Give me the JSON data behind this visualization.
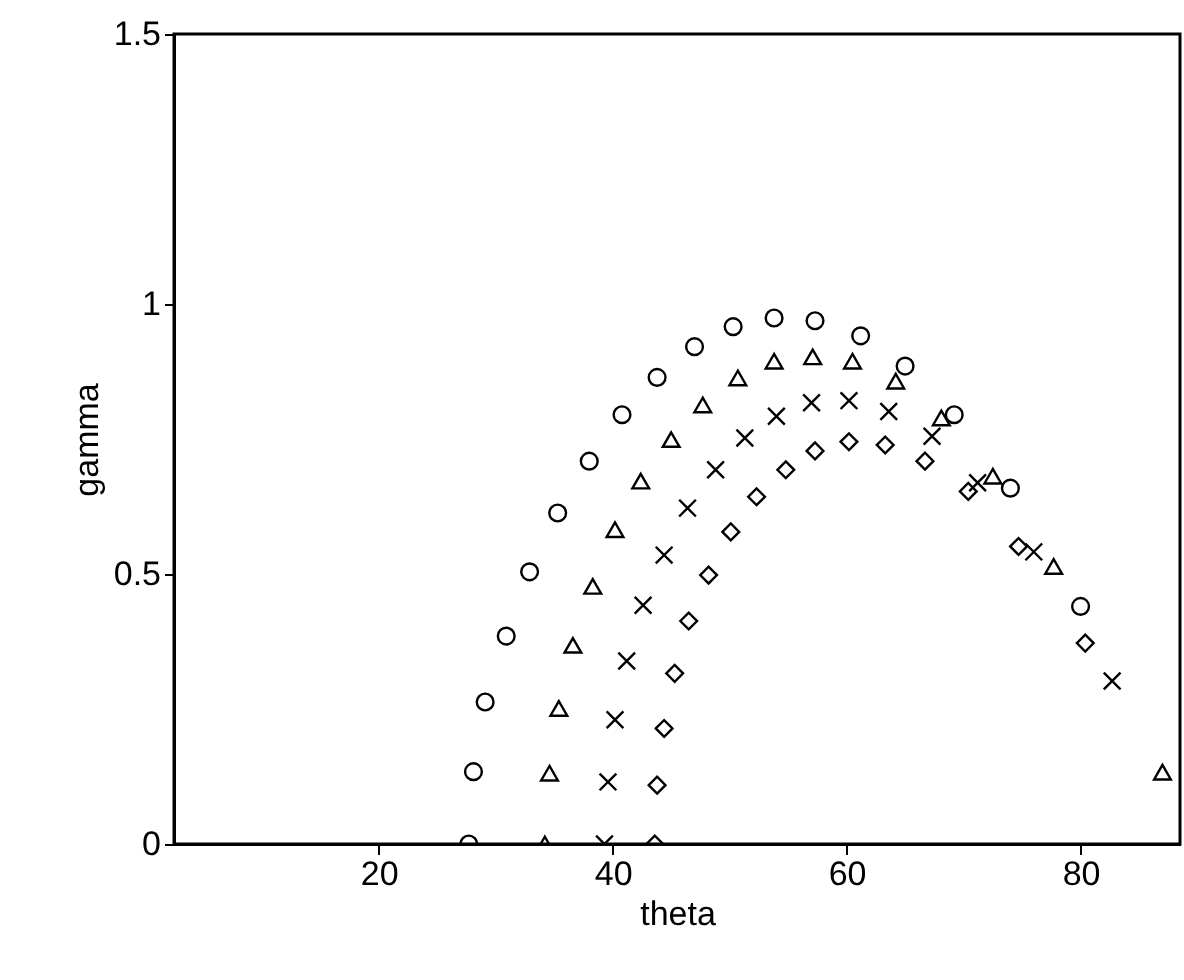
{
  "chart_data": {
    "type": "scatter",
    "xlabel": "theta",
    "ylabel": "gamma",
    "xlim": [
      2.5,
      88.5
    ],
    "ylim": [
      0,
      1.5
    ],
    "xticks": [
      20,
      40,
      60,
      80
    ],
    "yticks": [
      0,
      0.5,
      1,
      1.5
    ],
    "grid": false,
    "series": [
      {
        "color": "#000000",
        "marker": "circle",
        "x": [
          27.7,
          28.1,
          29.1,
          30.9,
          32.9,
          35.3,
          38.0,
          40.8,
          43.8,
          47.0,
          50.3,
          53.8,
          57.3,
          61.2,
          65.0,
          69.2,
          74.0,
          80.0
        ],
        "values": [
          0,
          0.134,
          0.263,
          0.385,
          0.504,
          0.613,
          0.709,
          0.795,
          0.864,
          0.921,
          0.958,
          0.974,
          0.969,
          0.941,
          0.885,
          0.795,
          0.659,
          0.44
        ]
      },
      {
        "color": "#000000",
        "marker": "triangle",
        "x": [
          34.2,
          34.6,
          35.4,
          36.6,
          38.3,
          40.2,
          42.4,
          45.0,
          47.7,
          50.7,
          53.8,
          57.1,
          60.5,
          64.2,
          68.1,
          72.5,
          77.7,
          87.0
        ],
        "values": [
          0,
          0.131,
          0.251,
          0.368,
          0.477,
          0.582,
          0.672,
          0.749,
          0.813,
          0.863,
          0.894,
          0.902,
          0.894,
          0.857,
          0.789,
          0.681,
          0.514,
          0.133
        ]
      },
      {
        "color": "#000000",
        "marker": "cross",
        "x": [
          39.3,
          39.6,
          40.2,
          41.2,
          42.6,
          44.4,
          46.4,
          48.8,
          51.3,
          54.0,
          57.0,
          60.2,
          63.6,
          67.3,
          71.2,
          76.0,
          82.7
        ],
        "values": [
          0,
          0.115,
          0.23,
          0.339,
          0.442,
          0.535,
          0.622,
          0.693,
          0.752,
          0.792,
          0.817,
          0.821,
          0.801,
          0.755,
          0.669,
          0.541,
          0.302
        ]
      },
      {
        "color": "#000000",
        "marker": "diamond",
        "x": [
          43.6,
          43.8,
          44.4,
          45.3,
          46.5,
          48.2,
          50.1,
          52.3,
          54.8,
          57.3,
          60.2,
          63.3,
          66.7,
          70.4,
          74.7,
          80.4
        ],
        "values": [
          0,
          0.109,
          0.214,
          0.316,
          0.413,
          0.498,
          0.578,
          0.643,
          0.693,
          0.728,
          0.745,
          0.739,
          0.709,
          0.653,
          0.551,
          0.372
        ]
      }
    ]
  }
}
